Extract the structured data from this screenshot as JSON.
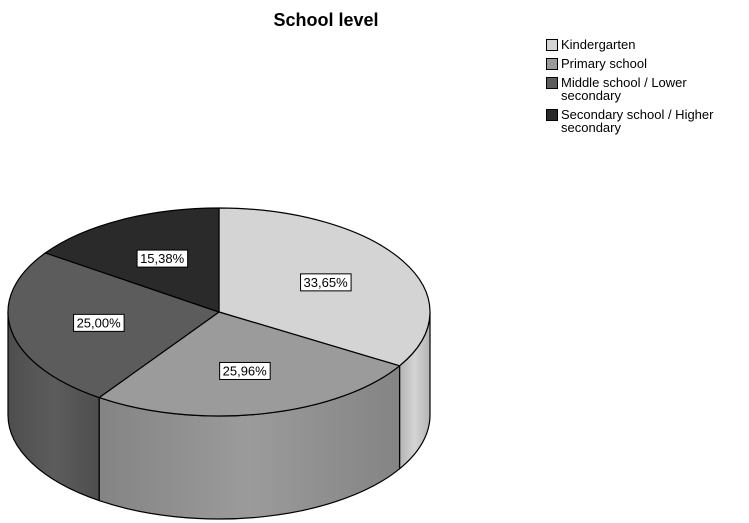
{
  "chart_data": {
    "type": "pie",
    "title": "School level",
    "categories": [
      "Kindergarten",
      "Primary school",
      "Middle school / Lower secondary",
      "Secondary school / Higher secondary"
    ],
    "values": [
      33.65,
      25.96,
      25.0,
      15.38
    ],
    "labels": [
      "33,65%",
      "25,96%",
      "25,00%",
      "15,38%"
    ],
    "colors": [
      "#d4d4d4",
      "#9b9b9b",
      "#5c5c5c",
      "#2a2a2a"
    ],
    "legend_placement": "top-right",
    "style": "3d"
  },
  "legend": {
    "items": [
      {
        "lines": [
          "Kindergarten"
        ]
      },
      {
        "lines": [
          "Primary school"
        ]
      },
      {
        "lines": [
          "Middle school / Lower",
          "secondary"
        ]
      },
      {
        "lines": [
          "Secondary school / Higher",
          "secondary"
        ]
      }
    ]
  }
}
